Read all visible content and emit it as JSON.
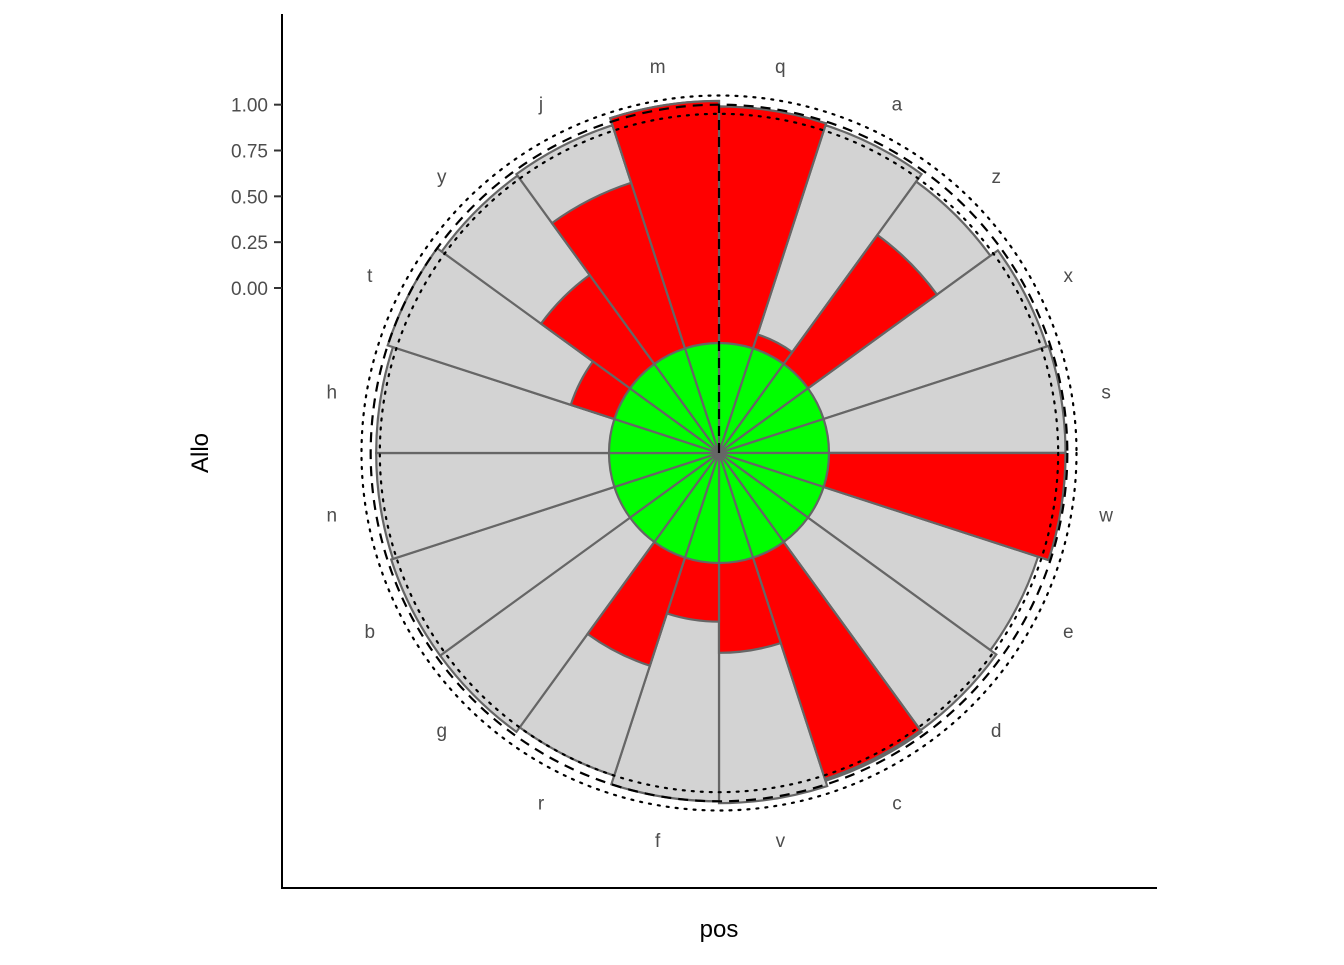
{
  "chart_data": {
    "type": "polar-bar",
    "xlabel": "pos",
    "ylabel": "Allo",
    "ylim": [
      -0.9,
      1.02
    ],
    "yticks": [
      {
        "value": 1.0,
        "label": "1.00"
      },
      {
        "value": 0.75,
        "label": "0.75"
      },
      {
        "value": 0.5,
        "label": "0.50"
      },
      {
        "value": 0.25,
        "label": "0.25"
      },
      {
        "value": 0.0,
        "label": "0.00"
      }
    ],
    "center_value": 0.0,
    "inner_band": -0.3,
    "reference_circles": [
      {
        "value": 0.95,
        "style": "dotted"
      },
      {
        "value": 1.0,
        "style": "dashed"
      },
      {
        "value": 1.05,
        "style": "dotted"
      }
    ],
    "grid": false,
    "legend": "none",
    "categories": [
      "q",
      "a",
      "z",
      "x",
      "s",
      "w",
      "e",
      "d",
      "c",
      "v",
      "f",
      "r",
      "g",
      "b",
      "n",
      "h",
      "t",
      "y",
      "j",
      "m"
    ],
    "series": [
      {
        "values": [
          0.99,
          0.98,
          0.93,
          0.98,
          0.99,
          0.99,
          0.93,
          0.97,
          0.98,
          1.01,
          1.0,
          0.95,
          0.98,
          0.98,
          0.97,
          0.97,
          1.0,
          0.97,
          0.98,
          1.02
        ]
      },
      {
        "values": [
          0.99,
          -0.22,
          0.57,
          -0.3,
          -0.3,
          0.99,
          -0.3,
          -0.3,
          0.97,
          0.19,
          0.02,
          0.32,
          -0.3,
          -0.3,
          -0.3,
          -0.3,
          -0.05,
          0.3,
          0.65,
          1.02
        ]
      }
    ],
    "colors": {
      "outer_bar": "#d3d3d3",
      "red_bar": "#ff0000",
      "center": "#00ff00",
      "stroke": "#666666",
      "axis": "#000000"
    }
  }
}
